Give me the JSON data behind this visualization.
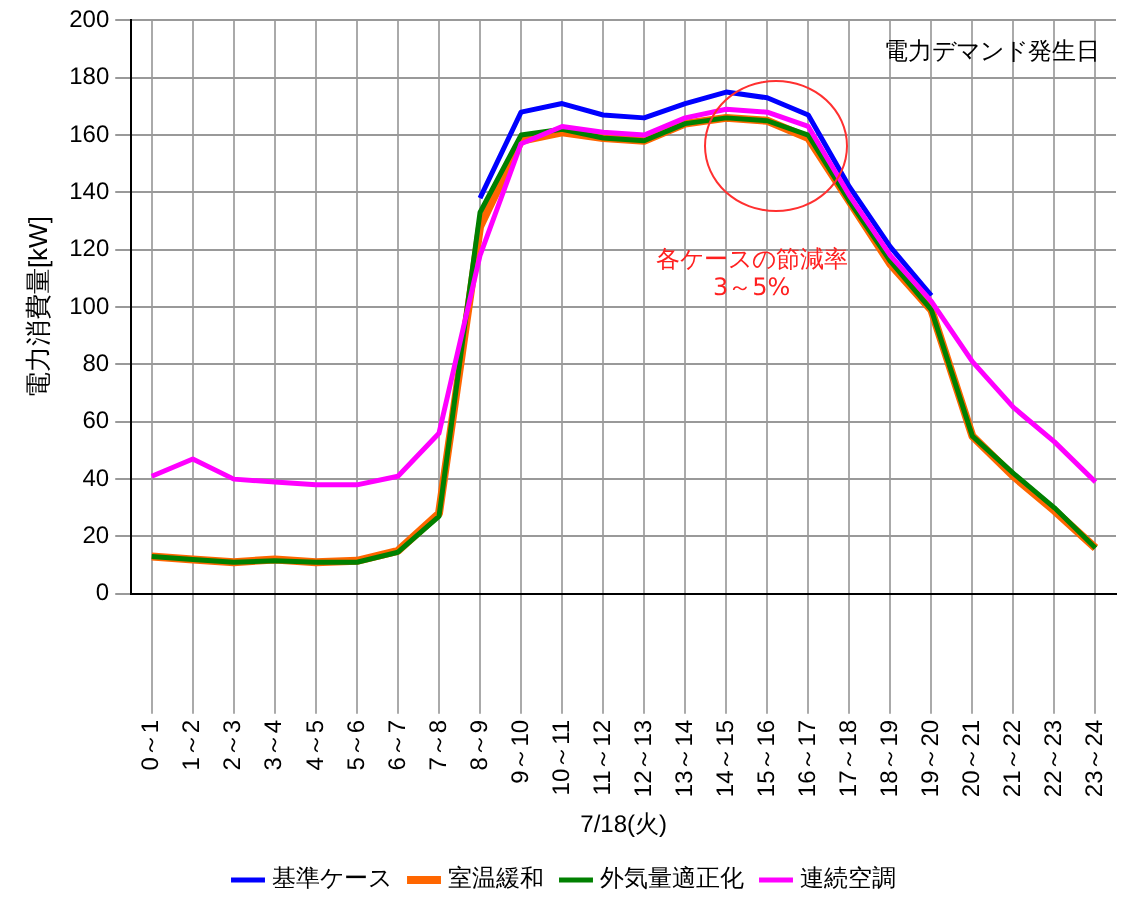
{
  "chart_data": {
    "type": "line",
    "xlabel": "7/18(火)",
    "ylabel": "電力消費量[kW]",
    "categories": [
      "0～1",
      "1～2",
      "2～3",
      "3～4",
      "4～5",
      "5～6",
      "6～7",
      "7～8",
      "8～9",
      "9～10",
      "10～11",
      "11～12",
      "12～13",
      "13～14",
      "14～15",
      "15～16",
      "16～17",
      "17～18",
      "18～19",
      "19～20",
      "20～21",
      "21～22",
      "22～23",
      "23～24"
    ],
    "series": [
      {
        "name": "基準ケース",
        "color": "#0000ff",
        "values": [
          null,
          null,
          null,
          null,
          null,
          null,
          null,
          null,
          138,
          168,
          171,
          167,
          166,
          171,
          175,
          173,
          167,
          142,
          121,
          104,
          null,
          null,
          null,
          null
        ]
      },
      {
        "name": "室温緩和",
        "color": "#ff6600",
        "values": [
          13,
          12,
          11,
          12,
          11,
          11.5,
          15,
          28,
          128,
          158,
          161,
          159,
          158,
          164,
          166,
          165,
          159,
          137,
          115,
          99,
          55,
          41,
          29,
          16
        ]
      },
      {
        "name": "外気量適正化",
        "color": "#008000",
        "values": [
          13,
          12,
          11,
          11.5,
          11,
          11,
          14.5,
          27,
          133,
          160,
          162,
          159,
          158,
          164,
          166,
          165,
          160,
          137,
          116,
          99,
          55,
          42,
          30,
          16
        ]
      },
      {
        "name": "連続空調",
        "color": "#ff00ff",
        "values": [
          41,
          47,
          40,
          39,
          38,
          38,
          41,
          56,
          118,
          157,
          163,
          161,
          160,
          166,
          169,
          168,
          163,
          139,
          118,
          102,
          81,
          65,
          53,
          39
        ]
      }
    ],
    "ylim": [
      0,
      200
    ],
    "yticks": [
      0,
      20,
      40,
      60,
      80,
      100,
      120,
      140,
      160,
      180,
      200
    ],
    "grid": true,
    "legend": "bottom",
    "marker": "none",
    "line_style": "solid",
    "annotations": [
      "電力デマンド発生日",
      "各ケースの節減率\n3～5%"
    ]
  }
}
